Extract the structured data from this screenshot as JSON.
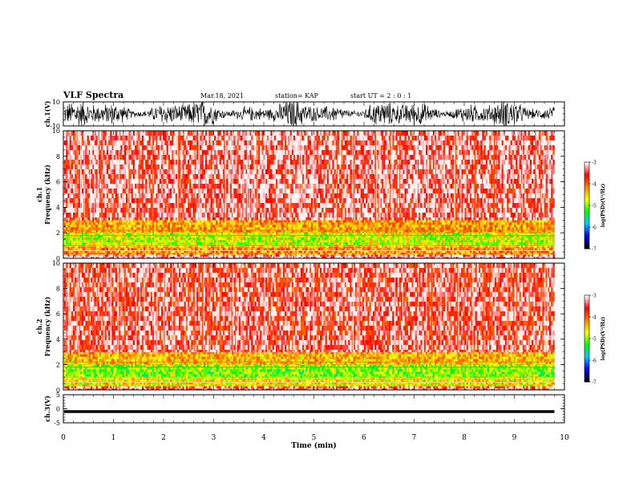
{
  "header": {
    "title": "VLF Spectra",
    "date": "Mar.18, 2021",
    "station": "station= KAP",
    "start": "start UT =  2 : 0  : 1"
  },
  "colors": {
    "waveform": "#000000",
    "colormap": [
      "#000000",
      "#0000ff",
      "#00c8ff",
      "#00ff00",
      "#ffff00",
      "#ff8000",
      "#ff0000",
      "#ffffff"
    ]
  },
  "chart_data": [
    {
      "type": "line",
      "panel": "ch1-waveform",
      "ylabel": "ch.1(V)",
      "ylim": [
        -10,
        10
      ],
      "y_ticks": [
        "10",
        "-10"
      ],
      "description_of_series": "dense oscillating waveform",
      "amplitude_range_V": [
        -10,
        10
      ],
      "xlim": [
        0,
        9.8
      ]
    },
    {
      "type": "heatmap",
      "panel": "ch1-spectrogram",
      "ylabel": "ch.1\nFrequency (kHz)",
      "ylim": [
        0,
        10
      ],
      "y_ticks": [
        "0",
        "2",
        "4",
        "6",
        "8",
        "10"
      ],
      "colorbar": {
        "label": "log(PSD)(V²/Hz)",
        "range": [
          -7,
          -3
        ],
        "ticks": [
          "-3",
          "-4",
          "-5",
          "-6",
          "-7"
        ]
      },
      "bands": [
        {
          "freq_kHz": [
            0,
            0.3
          ],
          "level": -3.2
        },
        {
          "freq_kHz": [
            0.3,
            1.0
          ],
          "level": -4.2
        },
        {
          "freq_kHz": [
            1.0,
            2.0
          ],
          "level": -4.8
        },
        {
          "freq_kHz": [
            2.0,
            3.0
          ],
          "level": -4.3
        },
        {
          "freq_kHz": [
            3.0,
            10.0
          ],
          "level": -3.4
        }
      ],
      "xlim": [
        0,
        9.8
      ]
    },
    {
      "type": "heatmap",
      "panel": "ch2-spectrogram",
      "ylabel": "ch.2\nFrequency (kHz)",
      "ylim": [
        0,
        10
      ],
      "y_ticks": [
        "0",
        "2",
        "4",
        "6",
        "8",
        "10"
      ],
      "colorbar": {
        "label": "log(PSD)(V²/Hz)",
        "range": [
          -7,
          -3
        ],
        "ticks": [
          "-3",
          "-4",
          "-5",
          "-6",
          "-7"
        ]
      },
      "bands": [
        {
          "freq_kHz": [
            0,
            0.3
          ],
          "level": -3.4
        },
        {
          "freq_kHz": [
            0.3,
            1.0
          ],
          "level": -4.6
        },
        {
          "freq_kHz": [
            1.0,
            2.0
          ],
          "level": -5.0
        },
        {
          "freq_kHz": [
            2.0,
            3.0
          ],
          "level": -4.4
        },
        {
          "freq_kHz": [
            3.0,
            10.0
          ],
          "level": -3.5
        }
      ],
      "xlim": [
        0,
        9.8
      ]
    },
    {
      "type": "line",
      "panel": "ch3-waveform",
      "ylabel": "ch.3(V)",
      "ylim": [
        -5,
        5
      ],
      "y_ticks": [
        "5",
        "0",
        "-5"
      ],
      "amplitude_range_V": [
        -1.5,
        -0.5
      ],
      "xlim": [
        0,
        9.8
      ]
    }
  ],
  "x_axis": {
    "label": "Time (min)",
    "ticks": [
      "0",
      "1",
      "2",
      "3",
      "4",
      "5",
      "6",
      "7",
      "8",
      "9",
      "10"
    ],
    "range": [
      0,
      10
    ]
  }
}
